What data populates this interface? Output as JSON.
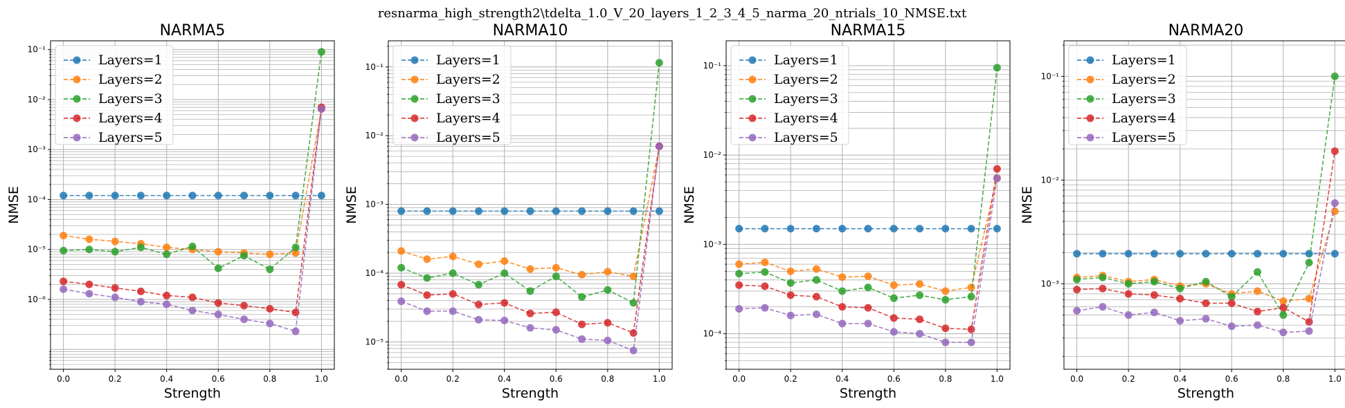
{
  "figure_title": "resnarma_high_strength2\\tdelta_1.0_V_20_layers_1_2_3_4_5_narma_20_ntrials_10_NMSE.txt",
  "chart_data": [
    {
      "type": "line",
      "title": "NARMA5",
      "xlabel": "Strength",
      "ylabel": "NMSE",
      "yscale": "log",
      "xlim": [
        -0.05,
        1.05
      ],
      "ylim": [
        4e-08,
        0.15
      ],
      "xticks": [
        0.0,
        0.2,
        0.4,
        0.6,
        0.8,
        1.0
      ],
      "xtick_labels": [
        "0.0",
        "0.2",
        "0.4",
        "0.6",
        "0.8",
        "1.0"
      ],
      "yticks": [
        1e-06,
        1e-05,
        0.0001,
        0.001,
        0.01,
        0.1
      ],
      "ytick_labels": [
        "10⁻⁶",
        "10⁻⁵",
        "10⁻⁴",
        "10⁻³",
        "10⁻²",
        "10⁻¹"
      ],
      "grid": true,
      "legend_position": "upper-left",
      "x": [
        0.0,
        0.1,
        0.2,
        0.3,
        0.4,
        0.5,
        0.6,
        0.7,
        0.8,
        0.9,
        1.0
      ],
      "series": [
        {
          "name": "Layers=1",
          "color": "#1f77b4",
          "values": [
            0.00012,
            0.00012,
            0.00012,
            0.00012,
            0.00012,
            0.00012,
            0.00012,
            0.00012,
            0.00012,
            0.00012,
            0.00012
          ]
        },
        {
          "name": "Layers=2",
          "color": "#ff7f0e",
          "values": [
            1.9e-05,
            1.6e-05,
            1.45e-05,
            1.3e-05,
            1.1e-05,
            1e-05,
            9e-06,
            8.5e-06,
            8e-06,
            8.5e-06,
            0.0065
          ]
        },
        {
          "name": "Layers=3",
          "color": "#2ca02c",
          "values": [
            9.5e-06,
            1e-05,
            9e-06,
            1.1e-05,
            8e-06,
            1.15e-05,
            4.2e-06,
            7.5e-06,
            4e-06,
            1.1e-05,
            0.09
          ]
        },
        {
          "name": "Layers=4",
          "color": "#d62728",
          "values": [
            2.3e-06,
            2e-06,
            1.7e-06,
            1.45e-06,
            1.2e-06,
            1.1e-06,
            8.5e-07,
            7.5e-07,
            6.5e-07,
            5.5e-07,
            0.007
          ]
        },
        {
          "name": "Layers=5",
          "color": "#9467bd",
          "values": [
            1.6e-06,
            1.3e-06,
            1.1e-06,
            9e-07,
            8e-07,
            6e-07,
            5e-07,
            4e-07,
            3.3e-07,
            2.3e-07,
            0.0065
          ]
        }
      ]
    },
    {
      "type": "line",
      "title": "NARMA10",
      "xlabel": "Strength",
      "ylabel": "NMSE",
      "yscale": "log",
      "xlim": [
        -0.05,
        1.05
      ],
      "ylim": [
        4e-06,
        0.24
      ],
      "xticks": [
        0.0,
        0.2,
        0.4,
        0.6,
        0.8,
        1.0
      ],
      "xtick_labels": [
        "0.0",
        "0.2",
        "0.4",
        "0.6",
        "0.8",
        "1.0"
      ],
      "yticks": [
        1e-05,
        0.0001,
        0.001,
        0.01,
        0.1
      ],
      "ytick_labels": [
        "10⁻⁵",
        "10⁻⁴",
        "10⁻³",
        "10⁻²",
        "10⁻¹"
      ],
      "grid": true,
      "legend_position": "upper-left",
      "x": [
        0.0,
        0.1,
        0.2,
        0.3,
        0.4,
        0.5,
        0.6,
        0.7,
        0.8,
        0.9,
        1.0
      ],
      "series": [
        {
          "name": "Layers=1",
          "color": "#1f77b4",
          "values": [
            0.0008,
            0.0008,
            0.0008,
            0.0008,
            0.0008,
            0.0008,
            0.0008,
            0.0008,
            0.0008,
            0.0008,
            0.0008
          ]
        },
        {
          "name": "Layers=2",
          "color": "#ff7f0e",
          "values": [
            0.00021,
            0.00016,
            0.000175,
            0.000135,
            0.00015,
            0.000115,
            0.00012,
            9.5e-05,
            0.000105,
            9e-05,
            0.007
          ]
        },
        {
          "name": "Layers=3",
          "color": "#2ca02c",
          "values": [
            0.00012,
            8.5e-05,
            0.0001,
            6.8e-05,
            0.0001,
            5.5e-05,
            9e-05,
            4.5e-05,
            5.7e-05,
            3.7e-05,
            0.115
          ]
        },
        {
          "name": "Layers=4",
          "color": "#d62728",
          "values": [
            6.8e-05,
            4.8e-05,
            5e-05,
            3.5e-05,
            3.7e-05,
            2.6e-05,
            2.7e-05,
            1.8e-05,
            1.9e-05,
            1.35e-05,
            0.007
          ]
        },
        {
          "name": "Layers=5",
          "color": "#9467bd",
          "values": [
            3.9e-05,
            2.8e-05,
            2.8e-05,
            2.1e-05,
            2.05e-05,
            1.6e-05,
            1.5e-05,
            1.1e-05,
            1.05e-05,
            7.5e-06,
            0.007
          ]
        }
      ]
    },
    {
      "type": "line",
      "title": "NARMA15",
      "xlabel": "Strength",
      "ylabel": "NMSE",
      "yscale": "log",
      "xlim": [
        -0.05,
        1.05
      ],
      "ylim": [
        4e-05,
        0.19
      ],
      "xticks": [
        0.0,
        0.2,
        0.4,
        0.6,
        0.8,
        1.0
      ],
      "xtick_labels": [
        "0.0",
        "0.2",
        "0.4",
        "0.6",
        "0.8",
        "1.0"
      ],
      "yticks": [
        0.0001,
        0.001,
        0.01,
        0.1
      ],
      "ytick_labels": [
        "10⁻⁴",
        "10⁻³",
        "10⁻²",
        "10⁻¹"
      ],
      "grid": true,
      "legend_position": "upper-left",
      "x": [
        0.0,
        0.1,
        0.2,
        0.3,
        0.4,
        0.5,
        0.6,
        0.7,
        0.8,
        0.9,
        1.0
      ],
      "series": [
        {
          "name": "Layers=1",
          "color": "#1f77b4",
          "values": [
            0.0015,
            0.0015,
            0.0015,
            0.0015,
            0.0015,
            0.0015,
            0.0015,
            0.0015,
            0.0015,
            0.0015,
            0.0015
          ]
        },
        {
          "name": "Layers=2",
          "color": "#ff7f0e",
          "values": [
            0.0006,
            0.00063,
            0.0005,
            0.00053,
            0.00043,
            0.00044,
            0.00035,
            0.00036,
            0.0003,
            0.00033,
            0.0055
          ]
        },
        {
          "name": "Layers=3",
          "color": "#2ca02c",
          "values": [
            0.00047,
            0.00049,
            0.00037,
            0.0004,
            0.0003,
            0.00033,
            0.00025,
            0.00027,
            0.00024,
            0.00026,
            0.095
          ]
        },
        {
          "name": "Layers=4",
          "color": "#d62728",
          "values": [
            0.00035,
            0.00034,
            0.00027,
            0.00026,
            0.0002,
            0.000195,
            0.00015,
            0.000145,
            0.000115,
            0.000112,
            0.007
          ]
        },
        {
          "name": "Layers=5",
          "color": "#9467bd",
          "values": [
            0.00019,
            0.000195,
            0.00016,
            0.000165,
            0.00013,
            0.00013,
            0.000105,
            0.0001,
            8e-05,
            8e-05,
            0.0055
          ]
        }
      ]
    },
    {
      "type": "line",
      "title": "NARMA20",
      "xlabel": "Strength",
      "ylabel": "NMSE",
      "yscale": "log",
      "xlim": [
        -0.05,
        1.05
      ],
      "ylim": [
        0.00015,
        0.22
      ],
      "xticks": [
        0.0,
        0.2,
        0.4,
        0.6,
        0.8,
        1.0
      ],
      "xtick_labels": [
        "0.0",
        "0.2",
        "0.4",
        "0.6",
        "0.8",
        "1.0"
      ],
      "yticks": [
        0.001,
        0.01,
        0.1
      ],
      "ytick_labels": [
        "10⁻³",
        "10⁻²",
        "10⁻¹"
      ],
      "grid": true,
      "legend_position": "upper-left",
      "x": [
        0.0,
        0.1,
        0.2,
        0.3,
        0.4,
        0.5,
        0.6,
        0.7,
        0.8,
        0.9,
        1.0
      ],
      "series": [
        {
          "name": "Layers=1",
          "color": "#1f77b4",
          "values": [
            0.00195,
            0.00195,
            0.00195,
            0.00195,
            0.00195,
            0.00195,
            0.00195,
            0.00195,
            0.00195,
            0.00195,
            0.00195
          ]
        },
        {
          "name": "Layers=2",
          "color": "#ff7f0e",
          "values": [
            0.00115,
            0.0012,
            0.00105,
            0.0011,
            0.00095,
            0.001,
            0.0008,
            0.00085,
            0.00068,
            0.00072,
            0.005
          ]
        },
        {
          "name": "Layers=3",
          "color": "#2ca02c",
          "values": [
            0.0011,
            0.00115,
            0.001,
            0.00105,
            0.0009,
            0.00105,
            0.00075,
            0.0013,
            0.0005,
            0.0016,
            0.1
          ]
        },
        {
          "name": "Layers=4",
          "color": "#d62728",
          "values": [
            0.00088,
            0.0009,
            0.0008,
            0.00078,
            0.00072,
            0.00065,
            0.00065,
            0.00054,
            0.00059,
            0.00043,
            0.019
          ]
        },
        {
          "name": "Layers=5",
          "color": "#9467bd",
          "values": [
            0.00055,
            0.0006,
            0.0005,
            0.00053,
            0.00044,
            0.00046,
            0.00039,
            0.0004,
            0.00034,
            0.00035,
            0.006
          ]
        }
      ]
    }
  ]
}
